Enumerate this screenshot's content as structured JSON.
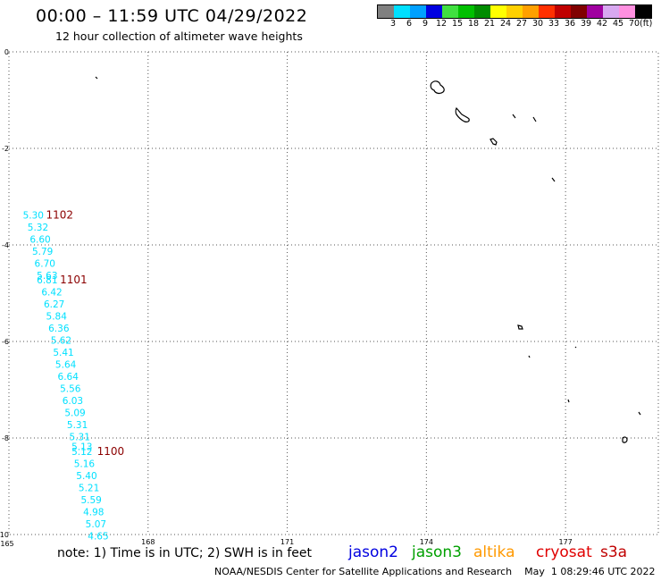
{
  "header": {
    "title": "00:00 – 11:59 UTC 04/29/2022",
    "subtitle": "12 hour collection of altimeter wave heights"
  },
  "legend": {
    "unit": "(ft)",
    "bins": [
      {
        "label": "3",
        "color": "#808080"
      },
      {
        "label": "6",
        "color": "#00e0ff"
      },
      {
        "label": "9",
        "color": "#00a0ff"
      },
      {
        "label": "12",
        "color": "#0000e0"
      },
      {
        "label": "15",
        "color": "#40e040"
      },
      {
        "label": "18",
        "color": "#00c000"
      },
      {
        "label": "21",
        "color": "#008c00"
      },
      {
        "label": "24",
        "color": "#ffff00"
      },
      {
        "label": "27",
        "color": "#ffd000"
      },
      {
        "label": "30",
        "color": "#ffa000"
      },
      {
        "label": "33",
        "color": "#ff3000"
      },
      {
        "label": "36",
        "color": "#c00000"
      },
      {
        "label": "39",
        "color": "#800000"
      },
      {
        "label": "42",
        "color": "#a000a0"
      },
      {
        "label": "45",
        "color": "#d8a8f0"
      },
      {
        "label": "70",
        "color": "#ff90e0"
      },
      {
        "label": "",
        "color": "#000000"
      }
    ]
  },
  "chart_data": {
    "type": "scatter",
    "x_ticks": [
      "165",
      "168",
      "171",
      "174",
      "177"
    ],
    "y_ticks": [
      "0",
      "-2",
      "-4",
      "-6",
      "-8",
      "-10"
    ],
    "xlim": [
      165,
      179
    ],
    "ylim": [
      -10,
      0
    ],
    "grid": true,
    "point_color": "#00e0ff",
    "points": [
      {
        "x": 165.3,
        "y": -3.45,
        "label": "5.30"
      },
      {
        "x": 165.4,
        "y": -3.7,
        "label": "5.32"
      },
      {
        "x": 165.45,
        "y": -3.95,
        "label": "6.60"
      },
      {
        "x": 165.5,
        "y": -4.2,
        "label": "5.79"
      },
      {
        "x": 165.55,
        "y": -4.45,
        "label": "6.70"
      },
      {
        "x": 165.6,
        "y": -4.7,
        "label": "5.63"
      },
      {
        "x": 165.6,
        "y": -4.8,
        "label": "6.81"
      },
      {
        "x": 165.7,
        "y": -5.05,
        "label": "6.42"
      },
      {
        "x": 165.75,
        "y": -5.3,
        "label": "6.27"
      },
      {
        "x": 165.8,
        "y": -5.55,
        "label": "5.84"
      },
      {
        "x": 165.85,
        "y": -5.8,
        "label": "6.36"
      },
      {
        "x": 165.9,
        "y": -6.05,
        "label": "5.62"
      },
      {
        "x": 165.95,
        "y": -6.3,
        "label": "5.41"
      },
      {
        "x": 166.0,
        "y": -6.55,
        "label": "5.64"
      },
      {
        "x": 166.05,
        "y": -6.8,
        "label": "6.64"
      },
      {
        "x": 166.1,
        "y": -7.05,
        "label": "5.56"
      },
      {
        "x": 166.15,
        "y": -7.3,
        "label": "6.03"
      },
      {
        "x": 166.2,
        "y": -7.55,
        "label": "5.09"
      },
      {
        "x": 166.25,
        "y": -7.8,
        "label": "5.31"
      },
      {
        "x": 166.3,
        "y": -8.05,
        "label": "5.31"
      },
      {
        "x": 166.35,
        "y": -8.25,
        "label": "5.13"
      },
      {
        "x": 166.35,
        "y": -8.35,
        "label": "5.12"
      },
      {
        "x": 166.4,
        "y": -8.6,
        "label": "5.16"
      },
      {
        "x": 166.45,
        "y": -8.85,
        "label": "5.40"
      },
      {
        "x": 166.5,
        "y": -9.1,
        "label": "5.21"
      },
      {
        "x": 166.55,
        "y": -9.35,
        "label": "5.59"
      },
      {
        "x": 166.6,
        "y": -9.6,
        "label": "4.98"
      },
      {
        "x": 166.65,
        "y": -9.85,
        "label": "5.07"
      },
      {
        "x": 166.7,
        "y": -10.1,
        "label": "4.65"
      }
    ],
    "time_annotations": [
      {
        "x": 165.8,
        "y": -3.45,
        "label": "1102"
      },
      {
        "x": 166.1,
        "y": -4.8,
        "label": "1101"
      },
      {
        "x": 166.9,
        "y": -8.35,
        "label": "1100"
      }
    ],
    "annotation_color": "#8b0000"
  },
  "footer": {
    "note": "note:  1) Time is in UTC;  2) SWH is in feet",
    "missions": [
      {
        "label": "jason2",
        "color": "#0000e0"
      },
      {
        "label": "jason3",
        "color": "#00a000"
      },
      {
        "label": "altika",
        "color": "#ff9900"
      },
      {
        "label": "cryosat",
        "color": "#e00000"
      },
      {
        "label": "s3a",
        "color": "#c00000"
      }
    ],
    "credit": "NOAA/NESDIS Center for Satellite Applications and Research    May  1 08:29:46 UTC 2022"
  }
}
